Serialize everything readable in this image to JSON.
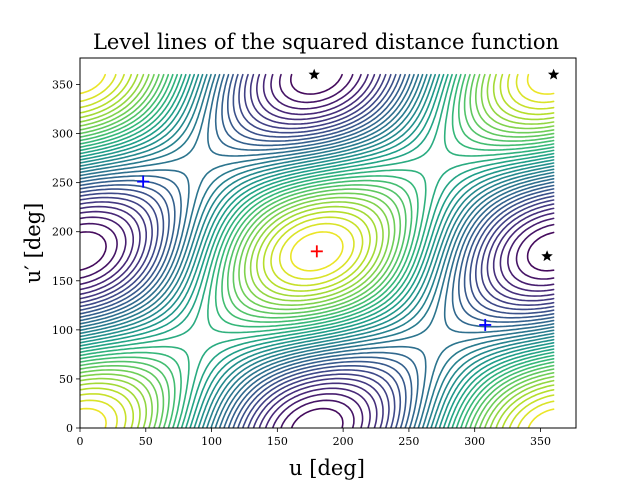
{
  "chart_data": {
    "type": "contour",
    "title": "Level lines of the squared distance function",
    "xlabel": "u [deg]",
    "ylabel": "u′ [deg]",
    "xlim": [
      0,
      377
    ],
    "ylim": [
      0,
      377
    ],
    "xticks": [
      0,
      50,
      100,
      150,
      200,
      250,
      300,
      350
    ],
    "yticks": [
      0,
      50,
      100,
      150,
      200,
      250,
      300,
      350
    ],
    "center": [
      180,
      180
    ],
    "colormap": [
      "#440154",
      "#482878",
      "#3e4989",
      "#31688e",
      "#26828e",
      "#1f9e89",
      "#35b779",
      "#6ece58",
      "#b5de2b",
      "#fde725"
    ],
    "markers": [
      {
        "label": "red-plus",
        "x": 180,
        "y": 180,
        "symbol": "+",
        "color": "#ff0000"
      },
      {
        "label": "blue-plus",
        "x": 48,
        "y": 251,
        "symbol": "+",
        "color": "#0000ff"
      },
      {
        "label": "blue-plus",
        "x": 308,
        "y": 105,
        "symbol": "+",
        "color": "#0000ff"
      },
      {
        "label": "black-star",
        "x": 178,
        "y": 360,
        "symbol": "★",
        "color": "#000000"
      },
      {
        "label": "black-star",
        "x": 360,
        "y": 360,
        "symbol": "★",
        "color": "#000000"
      },
      {
        "label": "black-star",
        "x": 355,
        "y": 175,
        "symbol": "★",
        "color": "#000000"
      }
    ]
  }
}
